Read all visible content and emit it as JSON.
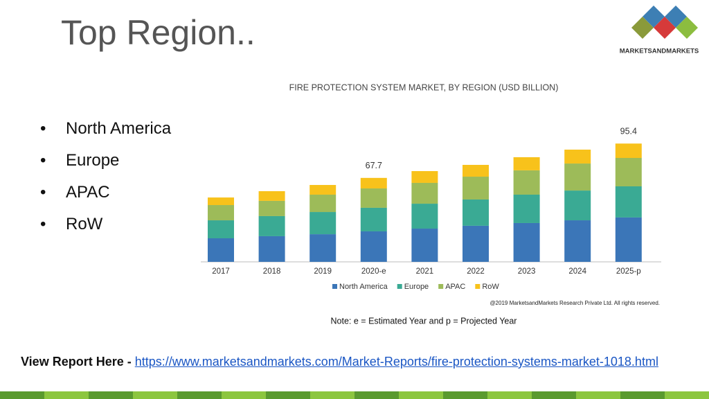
{
  "slide_title": "Top Region..",
  "logo_text": "MARKETSANDMARKETS",
  "bullets": [
    "North America",
    "Europe",
    "APAC",
    "RoW"
  ],
  "chart_data": {
    "type": "stacked-bar",
    "title": "FIRE PROTECTION SYSTEM  MARKET, BY REGION (USD BILLION)",
    "categories": [
      "2017",
      "2018",
      "2019",
      "2020-e",
      "2021",
      "2022",
      "2023",
      "2024",
      "2025-p"
    ],
    "series": [
      {
        "name": "North America",
        "color": "#3b76b8",
        "values": [
          19.0,
          20.7,
          22.3,
          24.6,
          26.8,
          29.1,
          31.3,
          33.5,
          35.8
        ]
      },
      {
        "name": "Europe",
        "color": "#3aaa94",
        "values": [
          14.5,
          16.2,
          17.9,
          19.0,
          20.1,
          21.2,
          22.9,
          24.0,
          25.1
        ]
      },
      {
        "name": "APAC",
        "color": "#9dbb59",
        "values": [
          12.3,
          12.3,
          14.0,
          15.6,
          16.8,
          18.4,
          19.6,
          21.8,
          22.9
        ]
      },
      {
        "name": "RoW",
        "color": "#f8c21b",
        "values": [
          6.1,
          7.8,
          7.8,
          8.5,
          9.5,
          9.5,
          10.6,
          11.2,
          11.6
        ]
      }
    ],
    "annotations": [
      {
        "category": "2020-e",
        "value": 67.7
      },
      {
        "category": "2025-p",
        "value": 95.4
      }
    ],
    "copyright": "@2019 MarketsandMarkets  Research Private Ltd. All rights reserved.",
    "note": "Note: e = Estimated Year and p = Projected Year"
  },
  "footer": {
    "label": "View Report Here - ",
    "link": "https://www.marketsandmarkets.com/Market-Reports/fire-protection-systems-market-1018.html"
  }
}
